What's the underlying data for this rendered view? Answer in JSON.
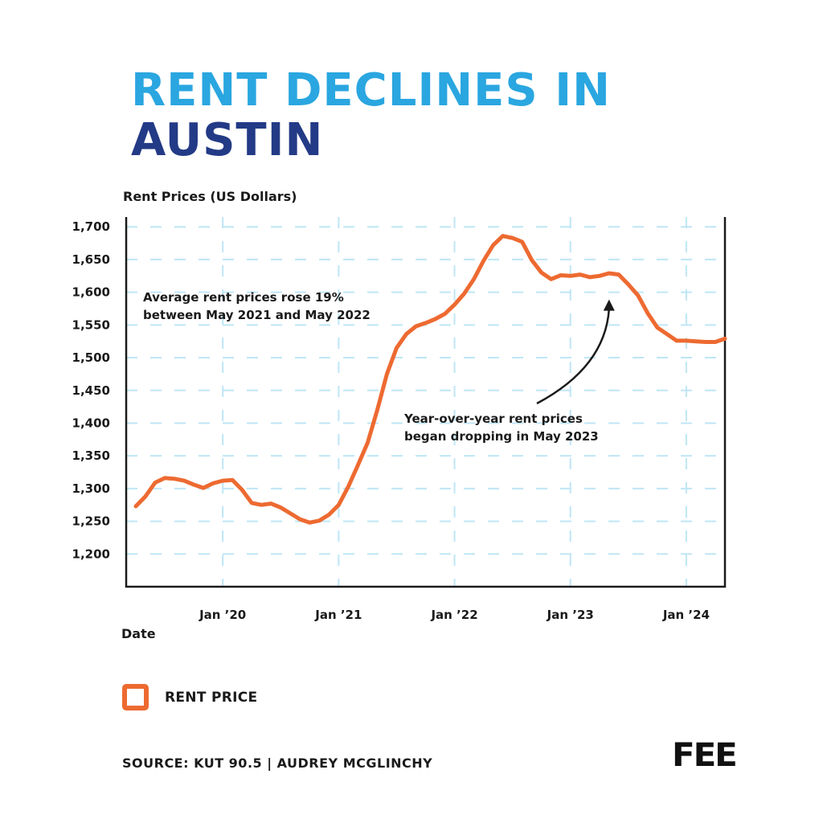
{
  "title": {
    "line1": "RENT DECLINES IN",
    "line2": "AUSTIN"
  },
  "colors": {
    "title_line1": "#2aa6e0",
    "title_line2": "#233a86",
    "line": "#ed6a31",
    "grid": "#bfe6f6",
    "axis": "#1a1a1a"
  },
  "chart_data": {
    "type": "line",
    "title": "RENT DECLINES IN AUSTIN",
    "ylabel": "Rent Prices (US Dollars)",
    "xlabel": "Date",
    "ylim": [
      1150,
      1715
    ],
    "yticks": [
      1200,
      1250,
      1300,
      1350,
      1400,
      1450,
      1500,
      1550,
      1600,
      1650,
      1700
    ],
    "ytick_labels": [
      "1,200",
      "1,250",
      "1,300",
      "1,350",
      "1,400",
      "1,450",
      "1,500",
      "1,550",
      "1,600",
      "1,650",
      "1,700"
    ],
    "xlim": [
      "2019-03",
      "2024-05"
    ],
    "xticks": [
      "2020-01",
      "2021-01",
      "2022-01",
      "2023-01",
      "2024-01"
    ],
    "xtick_labels": [
      "Jan ’20",
      "Jan ’21",
      "Jan ’22",
      "Jan ’23",
      "Jan ’24"
    ],
    "grid": true,
    "series": [
      {
        "name": "RENT PRICE",
        "x": [
          "2019-04",
          "2019-05",
          "2019-06",
          "2019-07",
          "2019-08",
          "2019-09",
          "2019-10",
          "2019-11",
          "2019-12",
          "2020-01",
          "2020-02",
          "2020-03",
          "2020-04",
          "2020-05",
          "2020-06",
          "2020-07",
          "2020-08",
          "2020-09",
          "2020-10",
          "2020-11",
          "2020-12",
          "2021-01",
          "2021-02",
          "2021-03",
          "2021-04",
          "2021-05",
          "2021-06",
          "2021-07",
          "2021-08",
          "2021-09",
          "2021-10",
          "2021-11",
          "2021-12",
          "2022-01",
          "2022-02",
          "2022-03",
          "2022-04",
          "2022-05",
          "2022-06",
          "2022-07",
          "2022-08",
          "2022-09",
          "2022-10",
          "2022-11",
          "2022-12",
          "2023-01",
          "2023-02",
          "2023-03",
          "2023-04",
          "2023-05",
          "2023-06",
          "2023-07",
          "2023-08",
          "2023-09",
          "2023-10",
          "2023-11",
          "2023-12",
          "2024-01",
          "2024-02",
          "2024-03",
          "2024-04",
          "2024-05"
        ],
        "y": [
          1273,
          1288,
          1309,
          1316,
          1315,
          1312,
          1306,
          1301,
          1308,
          1312,
          1313,
          1298,
          1278,
          1275,
          1277,
          1271,
          1262,
          1253,
          1248,
          1251,
          1260,
          1275,
          1303,
          1336,
          1370,
          1420,
          1475,
          1515,
          1536,
          1548,
          1553,
          1559,
          1567,
          1581,
          1598,
          1620,
          1648,
          1672,
          1686,
          1683,
          1677,
          1649,
          1630,
          1620,
          1626,
          1625,
          1627,
          1623,
          1625,
          1629,
          1627,
          1612,
          1595,
          1568,
          1546,
          1536,
          1526,
          1526,
          1525,
          1524,
          1524,
          1529
        ]
      }
    ],
    "annotations": [
      {
        "text_lines": [
          "Average rent prices rose 19%",
          "between May 2021 and May 2022"
        ]
      },
      {
        "text_lines": [
          "Year-over-year rent prices",
          "began dropping in May 2023"
        ],
        "arrow_to": [
          "2023-05",
          1589
        ]
      }
    ],
    "legend": {
      "placement": "bottom-left",
      "label": "RENT PRICE"
    }
  },
  "source": "SOURCE: KUT 90.5 | AUDREY MCGLINCHY",
  "logo_text": "FEE"
}
